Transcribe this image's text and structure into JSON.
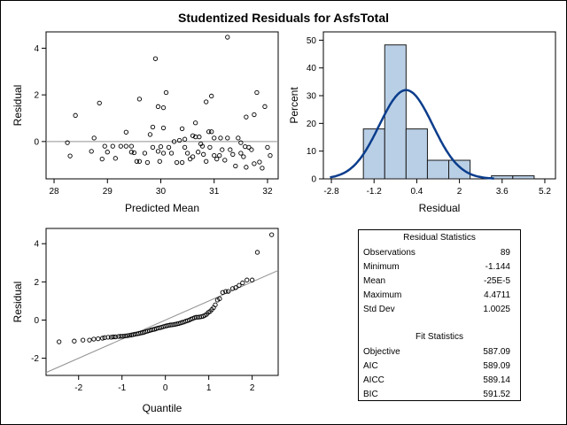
{
  "title": "Studentized Residuals for AsfsTotal",
  "chart_data": [
    {
      "type": "scatter",
      "xlabel": "Predicted Mean",
      "ylabel": "Residual",
      "xlim": [
        27.85,
        32.2
      ],
      "ylim": [
        -1.6,
        4.7
      ],
      "x_ticks": [
        28,
        29,
        30,
        31,
        32
      ],
      "y_ticks": [
        0,
        2,
        4
      ],
      "y_tick_labels": [
        "0",
        "2",
        "4"
      ],
      "reference_line_y": 0,
      "points": [
        [
          28.25,
          -0.05
        ],
        [
          28.3,
          -0.62
        ],
        [
          28.4,
          1.12
        ],
        [
          28.7,
          -0.42
        ],
        [
          28.75,
          0.15
        ],
        [
          28.85,
          1.65
        ],
        [
          28.9,
          -0.75
        ],
        [
          28.95,
          -0.2
        ],
        [
          29.0,
          -0.45
        ],
        [
          29.1,
          -0.2
        ],
        [
          29.15,
          -0.72
        ],
        [
          29.25,
          -0.2
        ],
        [
          29.35,
          0.4
        ],
        [
          29.35,
          -0.2
        ],
        [
          29.45,
          -0.45
        ],
        [
          29.45,
          -0.2
        ],
        [
          29.5,
          -0.48
        ],
        [
          29.55,
          -0.85
        ],
        [
          29.6,
          1.82
        ],
        [
          29.6,
          -0.85
        ],
        [
          29.7,
          -0.5
        ],
        [
          29.75,
          -0.9
        ],
        [
          29.8,
          0.3
        ],
        [
          29.85,
          0.62
        ],
        [
          29.85,
          -0.25
        ],
        [
          29.9,
          3.55
        ],
        [
          29.95,
          1.5
        ],
        [
          29.95,
          -0.42
        ],
        [
          29.98,
          -0.85
        ],
        [
          30.0,
          -0.22
        ],
        [
          30.05,
          1.45
        ],
        [
          30.05,
          0.58
        ],
        [
          30.05,
          -0.5
        ],
        [
          30.1,
          2.1
        ],
        [
          30.15,
          -0.25
        ],
        [
          30.2,
          -0.5
        ],
        [
          30.25,
          0.0
        ],
        [
          30.3,
          -0.9
        ],
        [
          30.35,
          0.05
        ],
        [
          30.4,
          0.55
        ],
        [
          30.4,
          -0.9
        ],
        [
          30.45,
          0.1
        ],
        [
          30.45,
          -0.25
        ],
        [
          30.5,
          -0.5
        ],
        [
          30.55,
          -0.75
        ],
        [
          30.6,
          0.25
        ],
        [
          30.6,
          -0.65
        ],
        [
          30.65,
          0.8
        ],
        [
          30.65,
          0.2
        ],
        [
          30.7,
          -0.45
        ],
        [
          30.72,
          0.2
        ],
        [
          30.75,
          -0.1
        ],
        [
          30.78,
          -0.2
        ],
        [
          30.8,
          -0.55
        ],
        [
          30.85,
          1.7
        ],
        [
          30.85,
          -0.85
        ],
        [
          30.9,
          0.42
        ],
        [
          30.92,
          -0.25
        ],
        [
          30.95,
          1.95
        ],
        [
          30.95,
          0.42
        ],
        [
          31.0,
          0.15
        ],
        [
          31.0,
          -0.6
        ],
        [
          31.05,
          -0.75
        ],
        [
          31.1,
          -0.6
        ],
        [
          31.12,
          0.15
        ],
        [
          31.15,
          -0.35
        ],
        [
          31.2,
          -0.8
        ],
        [
          31.25,
          4.47
        ],
        [
          31.25,
          0.15
        ],
        [
          31.3,
          -0.35
        ],
        [
          31.35,
          -0.55
        ],
        [
          31.4,
          -1.05
        ],
        [
          31.45,
          0.15
        ],
        [
          31.5,
          -0.05
        ],
        [
          31.5,
          -0.5
        ],
        [
          31.55,
          -0.65
        ],
        [
          31.6,
          1.05
        ],
        [
          31.6,
          -1.1
        ],
        [
          31.65,
          -0.25
        ],
        [
          31.7,
          -0.35
        ],
        [
          31.75,
          1.15
        ],
        [
          31.75,
          -0.95
        ],
        [
          31.8,
          2.1
        ],
        [
          31.85,
          -0.88
        ],
        [
          31.9,
          -1.14
        ],
        [
          31.95,
          1.5
        ],
        [
          32.0,
          -0.25
        ],
        [
          32.05,
          -0.6
        ],
        [
          31.58,
          -0.22
        ]
      ]
    },
    {
      "type": "bar",
      "xlabel": "Residual",
      "ylabel": "Percent",
      "xlim": [
        -3.1,
        5.6
      ],
      "ylim": [
        0,
        53
      ],
      "x_ticks": [
        -2.8,
        -1.2,
        0.4,
        2,
        3.6,
        5.2
      ],
      "y_ticks": [
        0,
        10,
        20,
        30,
        40,
        50
      ],
      "bins": [
        {
          "start": -1.6,
          "end": -0.8,
          "percent": 18
        },
        {
          "start": -0.8,
          "end": 0.0,
          "percent": 48.3
        },
        {
          "start": 0.0,
          "end": 0.8,
          "percent": 18
        },
        {
          "start": 0.8,
          "end": 1.6,
          "percent": 6.7
        },
        {
          "start": 1.6,
          "end": 2.4,
          "percent": 6.7
        },
        {
          "start": 2.4,
          "end": 3.2,
          "percent": 0
        },
        {
          "start": 3.2,
          "end": 4.0,
          "percent": 1.1
        },
        {
          "start": 4.0,
          "end": 4.8,
          "percent": 1.1
        }
      ],
      "normal_curve": {
        "mean": 0,
        "sd": 1,
        "peak_percent": 32
      }
    },
    {
      "type": "scatter",
      "xlabel": "Quantile",
      "ylabel": "Residual",
      "xlim": [
        -2.75,
        2.6
      ],
      "ylim": [
        -2.9,
        4.8
      ],
      "x_ticks": [
        -2,
        -1,
        0,
        1,
        2
      ],
      "y_ticks": [
        -2,
        0,
        2,
        4
      ],
      "reference_line": {
        "intercept": 0,
        "slope": 1.0
      },
      "points": [
        [
          -2.45,
          -1.14
        ],
        [
          -2.1,
          -1.1
        ],
        [
          -1.9,
          -1.05
        ],
        [
          -1.75,
          -1.05
        ],
        [
          -1.65,
          -1.0
        ],
        [
          -1.55,
          -0.98
        ],
        [
          -1.45,
          -0.95
        ],
        [
          -1.4,
          -0.92
        ],
        [
          -1.32,
          -0.9
        ],
        [
          -1.25,
          -0.9
        ],
        [
          -1.2,
          -0.88
        ],
        [
          -1.15,
          -0.88
        ],
        [
          -1.08,
          -0.86
        ],
        [
          -1.03,
          -0.85
        ],
        [
          -0.98,
          -0.85
        ],
        [
          -0.93,
          -0.83
        ],
        [
          -0.88,
          -0.82
        ],
        [
          -0.83,
          -0.8
        ],
        [
          -0.78,
          -0.78
        ],
        [
          -0.74,
          -0.76
        ],
        [
          -0.7,
          -0.74
        ],
        [
          -0.65,
          -0.72
        ],
        [
          -0.61,
          -0.7
        ],
        [
          -0.57,
          -0.68
        ],
        [
          -0.53,
          -0.66
        ],
        [
          -0.49,
          -0.64
        ],
        [
          -0.45,
          -0.6
        ],
        [
          -0.41,
          -0.58
        ],
        [
          -0.37,
          -0.55
        ],
        [
          -0.33,
          -0.52
        ],
        [
          -0.29,
          -0.5
        ],
        [
          -0.25,
          -0.48
        ],
        [
          -0.21,
          -0.45
        ],
        [
          -0.17,
          -0.42
        ],
        [
          -0.13,
          -0.4
        ],
        [
          -0.09,
          -0.38
        ],
        [
          -0.05,
          -0.35
        ],
        [
          -0.01,
          -0.32
        ],
        [
          0.03,
          -0.3
        ],
        [
          0.07,
          -0.28
        ],
        [
          0.11,
          -0.26
        ],
        [
          0.15,
          -0.25
        ],
        [
          0.19,
          -0.24
        ],
        [
          0.23,
          -0.22
        ],
        [
          0.27,
          -0.2
        ],
        [
          0.31,
          -0.18
        ],
        [
          0.35,
          -0.15
        ],
        [
          0.39,
          -0.12
        ],
        [
          0.43,
          -0.1
        ],
        [
          0.47,
          -0.06
        ],
        [
          0.51,
          -0.03
        ],
        [
          0.55,
          0.0
        ],
        [
          0.59,
          0.05
        ],
        [
          0.63,
          0.08
        ],
        [
          0.67,
          0.12
        ],
        [
          0.71,
          0.15
        ],
        [
          0.75,
          0.15
        ],
        [
          0.79,
          0.16
        ],
        [
          0.83,
          0.18
        ],
        [
          0.87,
          0.2
        ],
        [
          0.91,
          0.25
        ],
        [
          0.95,
          0.3
        ],
        [
          0.99,
          0.4
        ],
        [
          1.03,
          0.45
        ],
        [
          1.07,
          0.55
        ],
        [
          1.11,
          0.65
        ],
        [
          1.15,
          0.8
        ],
        [
          1.2,
          1.05
        ],
        [
          1.25,
          1.12
        ],
        [
          1.32,
          1.45
        ],
        [
          1.39,
          1.5
        ],
        [
          1.45,
          1.5
        ],
        [
          1.55,
          1.65
        ],
        [
          1.62,
          1.7
        ],
        [
          1.7,
          1.82
        ],
        [
          1.78,
          1.95
        ],
        [
          1.88,
          2.1
        ],
        [
          2.0,
          2.1
        ],
        [
          2.12,
          3.55
        ],
        [
          2.45,
          4.47
        ]
      ]
    }
  ],
  "stats_table": {
    "residual_header": "Residual Statistics",
    "residual_rows": [
      {
        "label": "Observations",
        "value": "89"
      },
      {
        "label": "Minimum",
        "value": "-1.144"
      },
      {
        "label": "Mean",
        "value": "-25E-5"
      },
      {
        "label": "Maximum",
        "value": "4.4711"
      },
      {
        "label": "Std Dev",
        "value": "1.0025"
      }
    ],
    "fit_header": "Fit Statistics",
    "fit_rows": [
      {
        "label": "Objective",
        "value": "587.09"
      },
      {
        "label": "AIC",
        "value": "589.09"
      },
      {
        "label": "AICC",
        "value": "589.14"
      },
      {
        "label": "BIC",
        "value": "591.52"
      }
    ]
  }
}
